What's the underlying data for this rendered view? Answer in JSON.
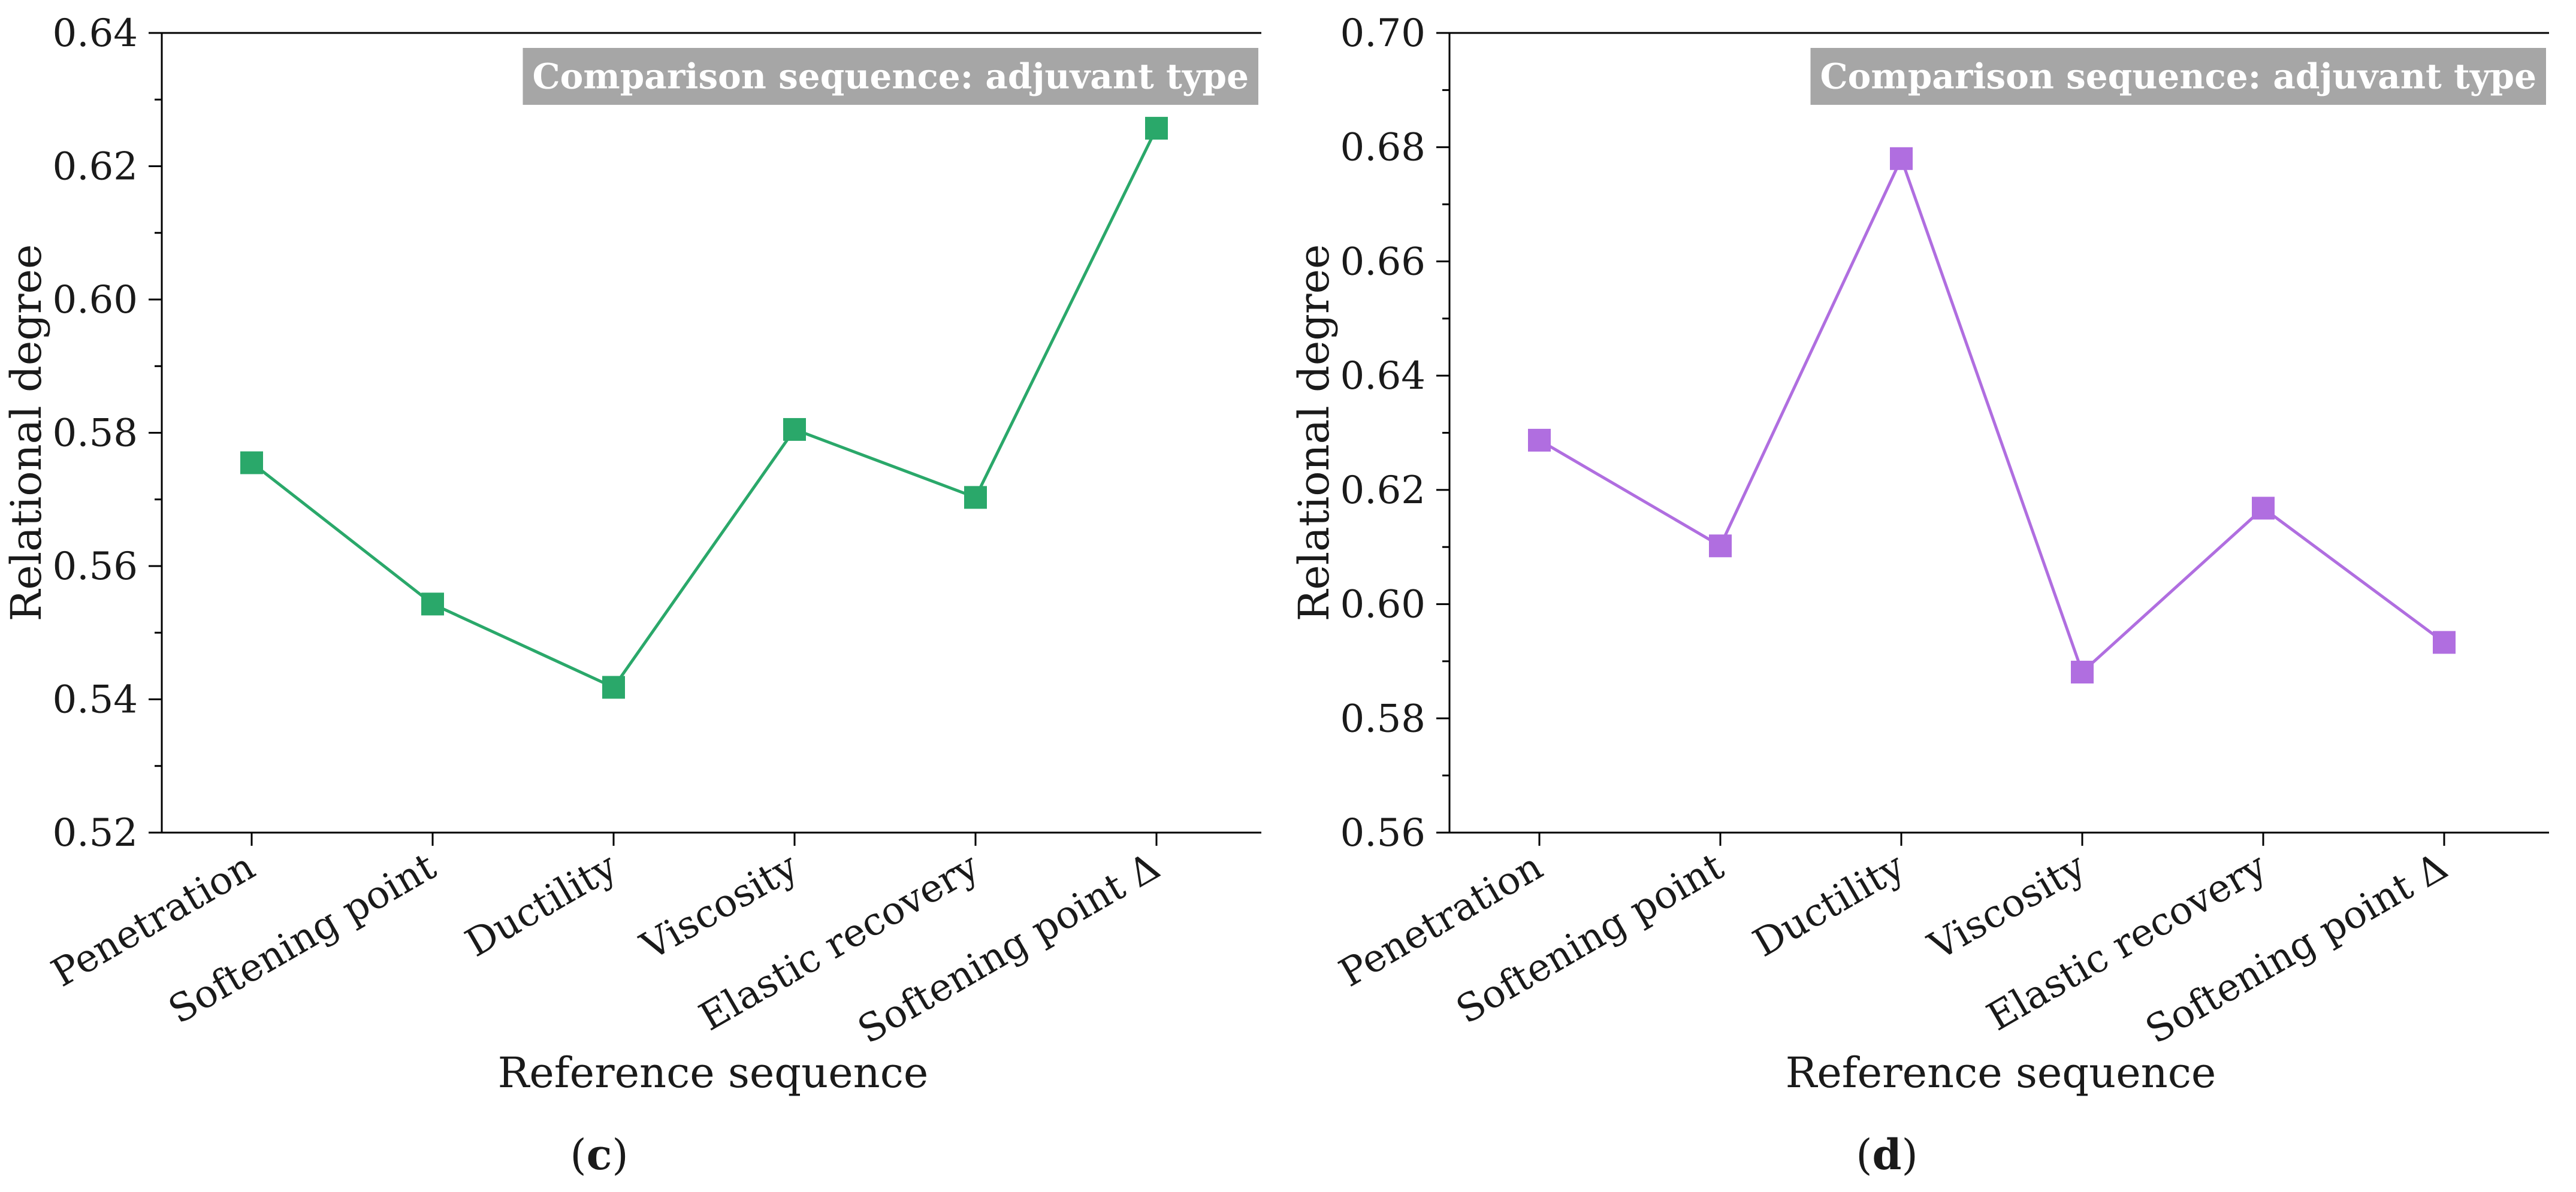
{
  "chart_data": [
    {
      "type": "line",
      "panel_label": "c",
      "title": "",
      "legend_text": "Comparison sequence: adjuvant type",
      "xlabel": "Reference sequence",
      "ylabel": "Relational degree",
      "categories": [
        "Penetration",
        "Softening point",
        "Ductility",
        "Viscosity",
        "Elastic recovery",
        "Softening point Δ"
      ],
      "series": [
        {
          "name": "Comparison sequence: adjuvant type",
          "values": [
            0.5755,
            0.5543,
            0.5418,
            0.5805,
            0.5703,
            0.6257
          ]
        }
      ],
      "ylim": [
        0.52,
        0.64
      ],
      "yticks": [
        "0.52",
        "0.54",
        "0.56",
        "0.58",
        "0.60",
        "0.62",
        "0.64"
      ],
      "color": "#2aa86a",
      "grid": false
    },
    {
      "type": "line",
      "panel_label": "d",
      "title": "",
      "legend_text": "Comparison sequence: adjuvant type",
      "xlabel": "Reference sequence",
      "ylabel": "Relational degree",
      "categories": [
        "Penetration",
        "Softening point",
        "Ductility",
        "Viscosity",
        "Elastic recovery",
        "Softening point Δ"
      ],
      "series": [
        {
          "name": "Comparison sequence: adjuvant type",
          "values": [
            0.6287,
            0.6102,
            0.678,
            0.5881,
            0.6168,
            0.5933
          ]
        }
      ],
      "ylim": [
        0.56,
        0.7
      ],
      "yticks": [
        "0.56",
        "0.58",
        "0.60",
        "0.62",
        "0.64",
        "0.66",
        "0.68",
        "0.70"
      ],
      "color": "#b06ee0",
      "grid": false
    }
  ]
}
